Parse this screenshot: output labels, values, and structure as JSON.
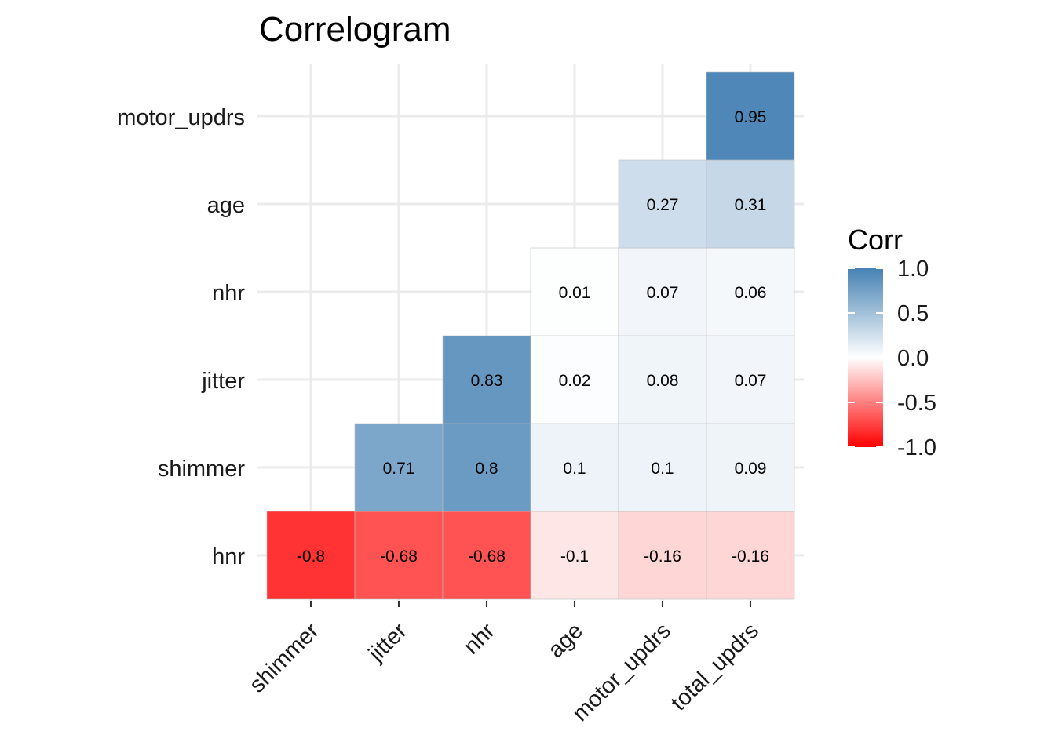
{
  "chart_data": {
    "type": "heatmap",
    "title": "Correlogram",
    "x_categories": [
      "shimmer",
      "jitter",
      "nhr",
      "age",
      "motor_updrs",
      "total_updrs"
    ],
    "y_categories": [
      "hnr",
      "shimmer",
      "jitter",
      "nhr",
      "age",
      "motor_updrs"
    ],
    "cells": [
      {
        "x": "shimmer",
        "y": "hnr",
        "value": -0.8,
        "label": "-0.8"
      },
      {
        "x": "jitter",
        "y": "hnr",
        "value": -0.68,
        "label": "-0.68"
      },
      {
        "x": "nhr",
        "y": "hnr",
        "value": -0.68,
        "label": "-0.68"
      },
      {
        "x": "age",
        "y": "hnr",
        "value": -0.1,
        "label": "-0.1"
      },
      {
        "x": "motor_updrs",
        "y": "hnr",
        "value": -0.16,
        "label": "-0.16"
      },
      {
        "x": "total_updrs",
        "y": "hnr",
        "value": -0.16,
        "label": "-0.16"
      },
      {
        "x": "jitter",
        "y": "shimmer",
        "value": 0.71,
        "label": "0.71"
      },
      {
        "x": "nhr",
        "y": "shimmer",
        "value": 0.8,
        "label": "0.8"
      },
      {
        "x": "age",
        "y": "shimmer",
        "value": 0.1,
        "label": "0.1"
      },
      {
        "x": "motor_updrs",
        "y": "shimmer",
        "value": 0.1,
        "label": "0.1"
      },
      {
        "x": "total_updrs",
        "y": "shimmer",
        "value": 0.09,
        "label": "0.09"
      },
      {
        "x": "nhr",
        "y": "jitter",
        "value": 0.83,
        "label": "0.83"
      },
      {
        "x": "age",
        "y": "jitter",
        "value": 0.02,
        "label": "0.02"
      },
      {
        "x": "motor_updrs",
        "y": "jitter",
        "value": 0.08,
        "label": "0.08"
      },
      {
        "x": "total_updrs",
        "y": "jitter",
        "value": 0.07,
        "label": "0.07"
      },
      {
        "x": "age",
        "y": "nhr",
        "value": 0.01,
        "label": "0.01"
      },
      {
        "x": "motor_updrs",
        "y": "nhr",
        "value": 0.07,
        "label": "0.07"
      },
      {
        "x": "total_updrs",
        "y": "nhr",
        "value": 0.06,
        "label": "0.06"
      },
      {
        "x": "motor_updrs",
        "y": "age",
        "value": 0.27,
        "label": "0.27"
      },
      {
        "x": "total_updrs",
        "y": "age",
        "value": 0.31,
        "label": "0.31"
      },
      {
        "x": "total_updrs",
        "y": "motor_updrs",
        "value": 0.95,
        "label": "0.95"
      }
    ],
    "legend": {
      "title": "Corr",
      "ticks": [
        {
          "value": 1.0,
          "label": "1.0"
        },
        {
          "value": 0.5,
          "label": "0.5"
        },
        {
          "value": 0.0,
          "label": "0.0"
        },
        {
          "value": -0.5,
          "label": "-0.5"
        },
        {
          "value": -1.0,
          "label": "-1.0"
        }
      ],
      "range": [
        -1,
        1
      ]
    },
    "colors": {
      "high": "#4682B4",
      "mid": "#FFFFFF",
      "low": "#FF0000"
    },
    "grid": true,
    "legend_position": "right"
  }
}
